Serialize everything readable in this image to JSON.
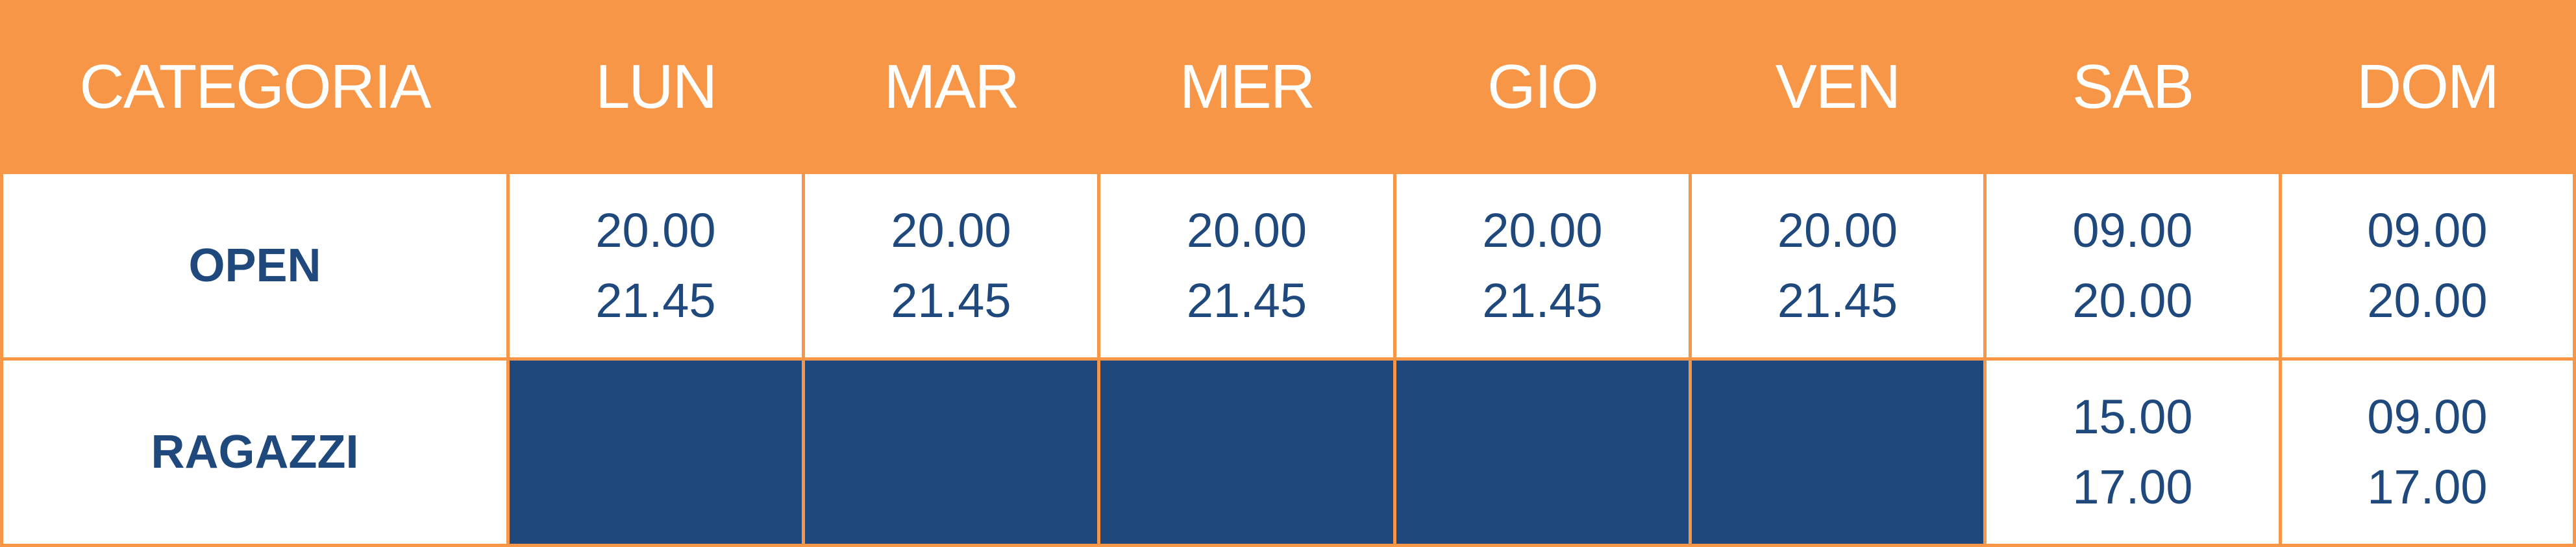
{
  "colors": {
    "header_bg": "#F79646",
    "text": "#1F497D",
    "empty_cell": "#1F497D",
    "border": "#F79646"
  },
  "header": [
    "CATEGORIA",
    "LUN",
    "MAR",
    "MER",
    "GIO",
    "VEN",
    "SAB",
    "DOM"
  ],
  "rows": [
    {
      "category": "OPEN",
      "cells": [
        {
          "start": "20.00",
          "end": "21.45"
        },
        {
          "start": "20.00",
          "end": "21.45"
        },
        {
          "start": "20.00",
          "end": "21.45"
        },
        {
          "start": "20.00",
          "end": "21.45"
        },
        {
          "start": "20.00",
          "end": "21.45"
        },
        {
          "start": "09.00",
          "end": "20.00"
        },
        {
          "start": "09.00",
          "end": "20.00"
        }
      ]
    },
    {
      "category": "RAGAZZI",
      "cells": [
        null,
        null,
        null,
        null,
        null,
        {
          "start": "15.00",
          "end": "17.00"
        },
        {
          "start": "09.00",
          "end": "17.00"
        }
      ]
    }
  ]
}
